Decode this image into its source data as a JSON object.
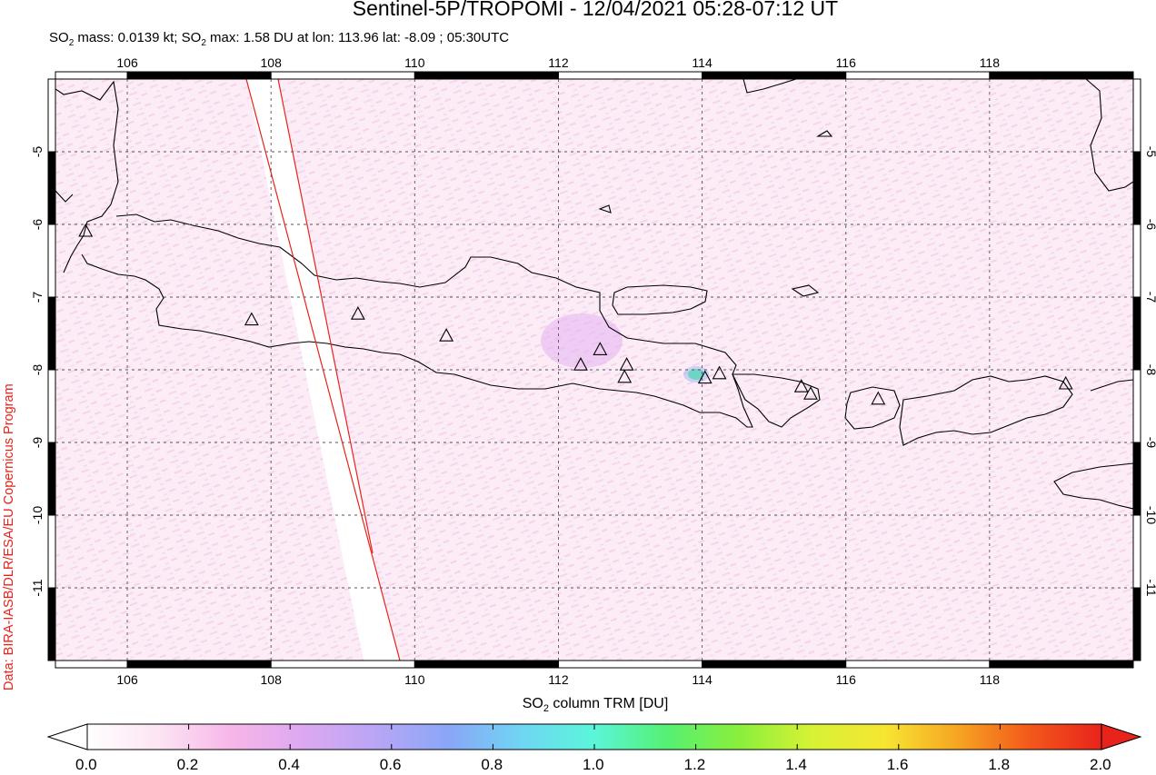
{
  "title": "Sentinel-5P/TROPOMI - 12/04/2021 05:28-07:12 UT",
  "subtitle": {
    "mass_label": "SO",
    "mass_sub": "2",
    "mass_text": " mass: 0.0139 kt; SO",
    "max_sub": "2",
    "max_text": " max: 1.58 DU at lon: 113.96 lat: -8.09 ; 05:30UTC"
  },
  "credit": "Data: BIRA-IASB/DLR/ESA/EU Copernicus Program",
  "xlabel": {
    "pre": "SO",
    "sub": "2",
    "post": " column TRM [DU]"
  },
  "map": {
    "lon_ticks": [
      106,
      108,
      110,
      112,
      114,
      116,
      118
    ],
    "lat_ticks": [
      -5,
      -6,
      -7,
      -8,
      -9,
      -10,
      -11
    ],
    "lon_labels": [
      "106",
      "108",
      "110",
      "112",
      "114",
      "116",
      "118"
    ],
    "lat_labels": [
      "-5",
      "-6",
      "-7",
      "-8",
      "-9",
      "-10",
      "-11"
    ],
    "lon_range": [
      105.0,
      120.0
    ],
    "lat_range": [
      -12.0,
      -4.0
    ],
    "grid": true,
    "volcanoes": [
      [
        105.42,
        -6.1
      ],
      [
        107.73,
        -7.32
      ],
      [
        109.21,
        -7.24
      ],
      [
        110.44,
        -7.54
      ],
      [
        112.31,
        -7.94
      ],
      [
        112.58,
        -7.73
      ],
      [
        112.95,
        -7.94
      ],
      [
        112.92,
        -8.11
      ],
      [
        114.04,
        -8.12
      ],
      [
        114.24,
        -8.06
      ],
      [
        115.38,
        -8.24
      ],
      [
        115.51,
        -8.34
      ],
      [
        116.45,
        -8.41
      ],
      [
        119.06,
        -8.2
      ]
    ],
    "so2_max": {
      "lon": 113.96,
      "lat": -8.09,
      "du": 1.58
    },
    "swath_edges": [
      {
        "top_lon": 107.7,
        "bottom_lon": 109.8
      },
      {
        "top_lon": 108.1,
        "bottom_lon": 109.5
      }
    ]
  },
  "colorbar": {
    "min": 0.0,
    "max": 2.0,
    "labels": [
      "0.0",
      "0.2",
      "0.4",
      "0.6",
      "0.8",
      "1.0",
      "1.2",
      "1.4",
      "1.6",
      "1.8",
      "2.0"
    ],
    "colors": [
      "#ffffff",
      "#fce4f3",
      "#f7b6e8",
      "#dca8f2",
      "#b8a6f5",
      "#8aa6f7",
      "#6fd6f3",
      "#5af6d9",
      "#55f073",
      "#8aef3c",
      "#d6f235",
      "#f7e632",
      "#f6a623",
      "#f3591b",
      "#e8231c"
    ]
  },
  "colors": {
    "coast": "#000000",
    "swath": "#e8231c",
    "background": "#fbeaf6"
  }
}
